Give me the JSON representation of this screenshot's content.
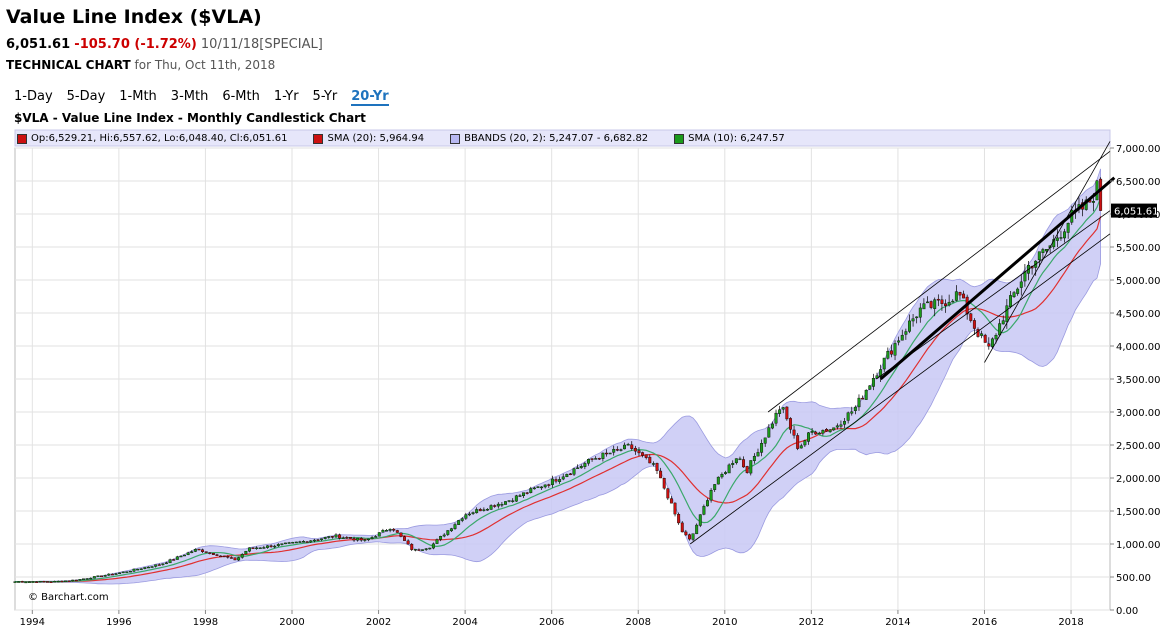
{
  "header": {
    "title": "Value Line Index ($VLA)",
    "last": "6,051.61",
    "change": "-105.70 (-1.72%)",
    "date": "10/11/18",
    "session": "[SPECIAL]",
    "tech_label": "TECHNICAL CHART",
    "tech_for": "for Thu, Oct 11th, 2018"
  },
  "ranges": [
    "1-Day",
    "5-Day",
    "1-Mth",
    "3-Mth",
    "6-Mth",
    "1-Yr",
    "5-Yr",
    "20-Yr"
  ],
  "active_range": "20-Yr",
  "chart_title": "$VLA - Value Line Index - Monthly Candlestick Chart",
  "legend": {
    "ohlc": "Op:6,529.21, Hi:6,557.62, Lo:6,048.40, Cl:6,051.61",
    "sma20": "SMA (20): 5,964.94",
    "bbands": "BBANDS (20, 2): 5,247.07 - 6,682.82",
    "sma10": "SMA (10): 6,247.57"
  },
  "credit": "© Barchart.com",
  "last_price_label": "6,051.61",
  "colors": {
    "up": "#1c9a1c",
    "down": "#cc1111",
    "sma20": "#e03030",
    "sma10": "#3aa86a",
    "band_fill": "#c8c8f4",
    "band_edge": "#9a9ae0",
    "active_tab": "#1e73be",
    "legend_bg": "#e6e6fa"
  },
  "chart_data": {
    "type": "candlestick",
    "title": "$VLA - Value Line Index - Monthly Candlestick Chart",
    "x_ticks": [
      "1994",
      "1996",
      "1998",
      "2000",
      "2002",
      "2004",
      "2006",
      "2008",
      "2010",
      "2012",
      "2014",
      "2016",
      "2018"
    ],
    "y_ticks": [
      "0.00",
      "500.00",
      "1,000.00",
      "1,500.00",
      "2,000.00",
      "2,500.00",
      "3,000.00",
      "3,500.00",
      "4,000.00",
      "4,500.00",
      "5,000.00",
      "5,500.00",
      "6,000.00",
      "6,500.00",
      "7,000.00"
    ],
    "ylim": [
      0,
      7000
    ],
    "xlim": [
      1993.6,
      2018.9
    ],
    "grid": true,
    "close_anchors": [
      [
        1993.6,
        430
      ],
      [
        1994.5,
        430
      ],
      [
        1995.0,
        455
      ],
      [
        1996.0,
        560
      ],
      [
        1997.0,
        700
      ],
      [
        1997.8,
        920
      ],
      [
        1998.7,
        760
      ],
      [
        1999.0,
        930
      ],
      [
        2000.0,
        1010
      ],
      [
        2001.0,
        1120
      ],
      [
        2001.7,
        1050
      ],
      [
        2002.3,
        1260
      ],
      [
        2002.8,
        900
      ],
      [
        2003.2,
        960
      ],
      [
        2004.0,
        1450
      ],
      [
        2005.0,
        1660
      ],
      [
        2006.0,
        1950
      ],
      [
        2007.0,
        2300
      ],
      [
        2007.8,
        2480
      ],
      [
        2008.4,
        2150
      ],
      [
        2008.7,
        1700
      ],
      [
        2009.0,
        1200
      ],
      [
        2009.2,
        1050
      ],
      [
        2009.7,
        1850
      ],
      [
        2010.3,
        2350
      ],
      [
        2010.5,
        2100
      ],
      [
        2011.3,
        3100
      ],
      [
        2011.7,
        2450
      ],
      [
        2012.0,
        2700
      ],
      [
        2012.5,
        2750
      ],
      [
        2013.0,
        3050
      ],
      [
        2013.5,
        3600
      ],
      [
        2014.0,
        4100
      ],
      [
        2014.5,
        4550
      ],
      [
        2015.0,
        4650
      ],
      [
        2015.4,
        4800
      ],
      [
        2015.8,
        4250
      ],
      [
        2016.1,
        3950
      ],
      [
        2016.5,
        4550
      ],
      [
        2017.0,
        5200
      ],
      [
        2017.5,
        5500
      ],
      [
        2018.0,
        5950
      ],
      [
        2018.4,
        6150
      ],
      [
        2018.7,
        6530
      ],
      [
        2018.75,
        6051.61
      ]
    ],
    "trendlines": [
      {
        "name": "upper-channel",
        "points": [
          [
            2011.0,
            3000
          ],
          [
            2018.9,
            6950
          ]
        ]
      },
      {
        "name": "lower-channel",
        "points": [
          [
            2009.2,
            1000
          ],
          [
            2018.9,
            5700
          ]
        ]
      },
      {
        "name": "mid-channel",
        "points": [
          [
            2013.5,
            3500
          ],
          [
            2018.9,
            6050
          ]
        ]
      },
      {
        "name": "steep-support",
        "points": [
          [
            2016.0,
            3750
          ],
          [
            2018.9,
            7100
          ]
        ]
      },
      {
        "name": "bold-trend",
        "points": [
          [
            2013.6,
            3500
          ],
          [
            2019.0,
            6550
          ]
        ]
      }
    ],
    "last": {
      "date": "10/11/18",
      "open": 6529.21,
      "high": 6557.62,
      "low": 6048.4,
      "close": 6051.61
    },
    "indicators": {
      "sma20": 5964.94,
      "sma10": 6247.57,
      "bbands_lower": 5247.07,
      "bbands_upper": 6682.82
    }
  }
}
